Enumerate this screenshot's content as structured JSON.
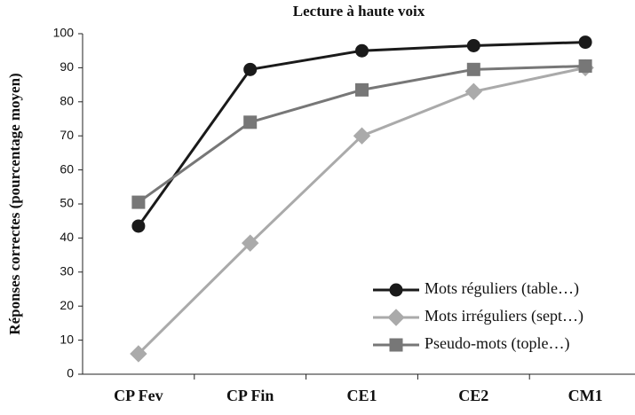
{
  "chart_data": {
    "type": "line",
    "title": "Lecture à haute voix",
    "ylabel": "Réponses correctes (pourcentage moyen)",
    "categories": [
      "CP Fev",
      "CP Fin",
      "CE1",
      "CE2",
      "CM1"
    ],
    "series": [
      {
        "name": "Mots réguliers (table…)",
        "color": "#1a1a1a",
        "marker": "circle",
        "values": [
          43.5,
          89.5,
          95,
          96.5,
          97.5
        ]
      },
      {
        "name": "Mots irréguliers (sept…)",
        "color": "#aaaaaa",
        "marker": "diamond",
        "values": [
          6,
          38.5,
          70,
          83,
          90
        ]
      },
      {
        "name": "Pseudo-mots (tople…)",
        "color": "#777777",
        "marker": "square",
        "values": [
          50.5,
          74,
          83.5,
          89.5,
          90.5
        ]
      }
    ],
    "ylim": [
      0,
      100
    ],
    "yticks": [
      0,
      10,
      20,
      30,
      40,
      50,
      60,
      70,
      80,
      90,
      100
    ],
    "legend": "lower right"
  }
}
